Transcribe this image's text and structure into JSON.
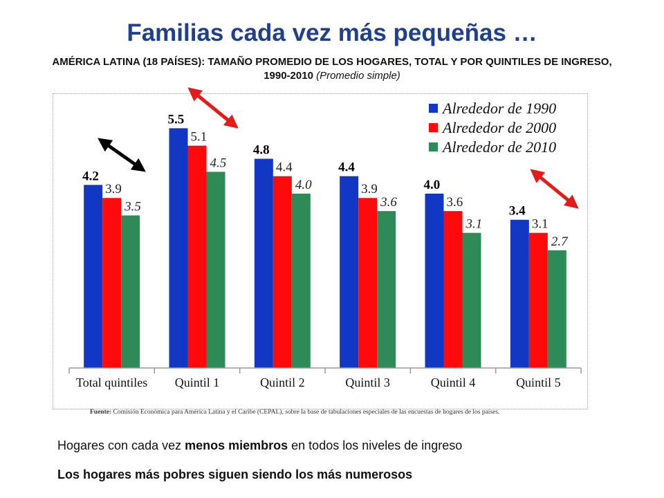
{
  "title": "Familias cada vez más pequeñas …",
  "subtitle": {
    "main": "AMÉRICA LATINA (18 PAÍSES): TAMAÑO PROMEDIO DE LOS HOGARES, TOTAL Y POR QUINTILES DE INGRESO, 1990-2010",
    "note": "(Promedio simple)"
  },
  "source": {
    "label": "Fuente:",
    "text": "Comisión Económica para América Latina y el Caribe (CEPAL), sobre la base de tabulaciones especiales de las encuestas de hogares de los países."
  },
  "bullets": {
    "line1_pre": "Hogares con cada vez ",
    "line1_bold": "menos miembros",
    "line1_post": " en todos los niveles de ingreso",
    "line2": "Los hogares más pobres siguen siendo los más numerosos"
  },
  "chart_data": {
    "type": "bar",
    "categories": [
      "Total quintiles",
      "Quintil 1",
      "Quintil 2",
      "Quintil 3",
      "Quintil 4",
      "Quintil 5"
    ],
    "series": [
      {
        "name": "Alrededor de 1990",
        "color": "#1237c2",
        "values": [
          4.2,
          5.5,
          4.8,
          4.4,
          4.0,
          3.4
        ],
        "labels": [
          "4.2",
          "5.5",
          "4.8",
          "4.4",
          "4.0",
          "3.4"
        ],
        "label_style": "bold"
      },
      {
        "name": "Alrededor de 2000",
        "color": "#ff0a0a",
        "values": [
          3.9,
          5.1,
          4.4,
          3.9,
          3.6,
          3.1
        ],
        "labels": [
          "3.9",
          "5.1",
          "4.4",
          "3.9",
          "3.6",
          "3.1"
        ],
        "label_style": "normal"
      },
      {
        "name": "Alrededor de 2010",
        "color": "#2e8b57",
        "values": [
          3.5,
          4.5,
          4.0,
          3.6,
          3.1,
          2.7
        ],
        "labels": [
          "3.5",
          "4.5",
          "4.0",
          "3.6",
          "3.1",
          "2.7"
        ],
        "label_style": "italic"
      }
    ],
    "ylim": [
      0,
      6.3
    ],
    "grid": false,
    "legend_position": "top-right",
    "annotations": [
      {
        "type": "double-arrow",
        "color": "#000000",
        "near": "Total quintiles"
      },
      {
        "type": "double-arrow",
        "color": "#e31b1b",
        "near": "Quintil 1"
      },
      {
        "type": "double-arrow",
        "color": "#e31b1b",
        "near": "Quintil 5"
      }
    ]
  }
}
